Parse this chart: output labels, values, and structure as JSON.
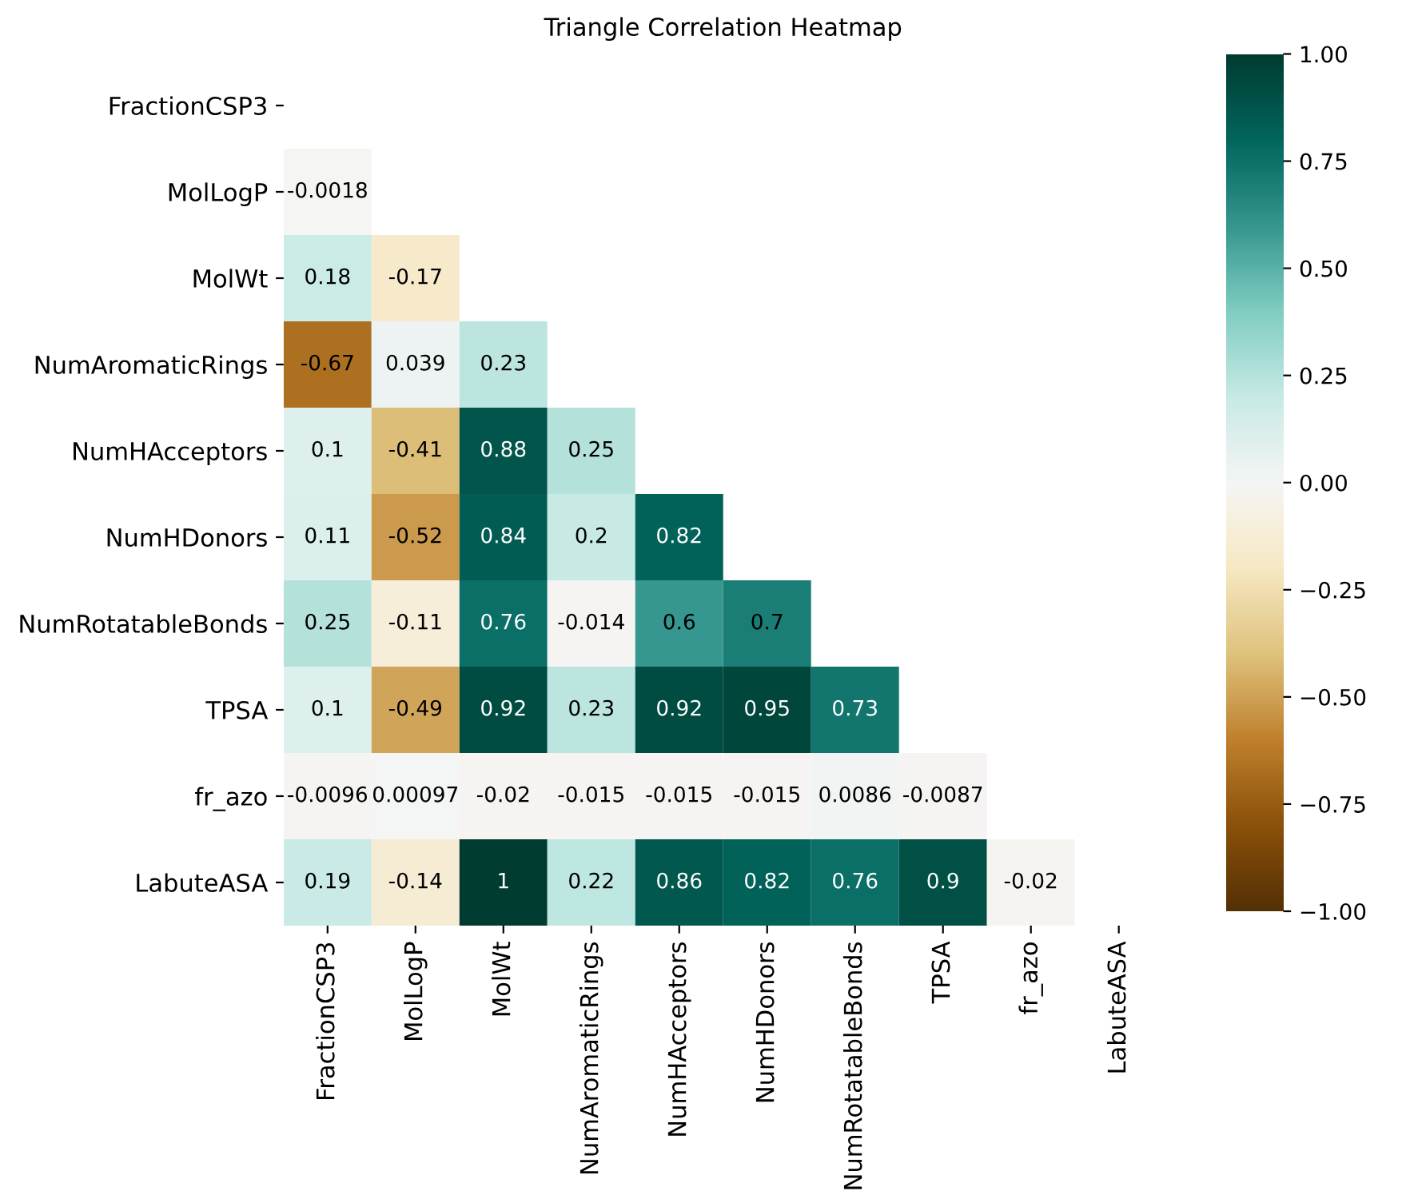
{
  "chart_data": {
    "type": "heatmap",
    "title": "Triangle Correlation Heatmap",
    "categories": [
      "FractionCSP3",
      "MolLogP",
      "MolWt",
      "NumAromaticRings",
      "NumHAcceptors",
      "NumHDonors",
      "NumRotatableBonds",
      "TPSA",
      "fr_azo",
      "LabuteASA"
    ],
    "y_categories": [
      "FractionCSP3",
      "MolLogP",
      "MolWt",
      "NumAromaticRings",
      "NumHAcceptors",
      "NumHDonors",
      "NumRotatableBonds",
      "TPSA",
      "fr_azo",
      "LabuteASA"
    ],
    "cells": [
      [
        null,
        null,
        null,
        null,
        null,
        null,
        null,
        null,
        null,
        null
      ],
      [
        -0.0018,
        null,
        null,
        null,
        null,
        null,
        null,
        null,
        null,
        null
      ],
      [
        0.18,
        -0.17,
        null,
        null,
        null,
        null,
        null,
        null,
        null,
        null
      ],
      [
        -0.67,
        0.039,
        0.23,
        null,
        null,
        null,
        null,
        null,
        null,
        null
      ],
      [
        0.1,
        -0.41,
        0.88,
        0.25,
        null,
        null,
        null,
        null,
        null,
        null
      ],
      [
        0.11,
        -0.52,
        0.84,
        0.2,
        0.82,
        null,
        null,
        null,
        null,
        null
      ],
      [
        0.25,
        -0.11,
        0.76,
        -0.014,
        0.6,
        0.7,
        null,
        null,
        null,
        null
      ],
      [
        0.1,
        -0.49,
        0.92,
        0.23,
        0.92,
        0.95,
        0.73,
        null,
        null,
        null
      ],
      [
        -0.0096,
        0.00097,
        -0.02,
        -0.015,
        -0.015,
        -0.015,
        0.0086,
        -0.0087,
        null,
        null
      ],
      [
        0.19,
        -0.14,
        1,
        0.22,
        0.86,
        0.82,
        0.76,
        0.9,
        -0.02,
        null
      ]
    ],
    "data_labels": true,
    "clim": [
      -1,
      1
    ],
    "cticks": [
      {
        "value": -1,
        "label": "−1.00"
      },
      {
        "value": -0.75,
        "label": "−0.75"
      },
      {
        "value": -0.5,
        "label": "−0.50"
      },
      {
        "value": -0.25,
        "label": "−0.25"
      },
      {
        "value": 0,
        "label": "0.00"
      },
      {
        "value": 0.25,
        "label": "0.25"
      },
      {
        "value": 0.5,
        "label": "0.50"
      },
      {
        "value": 0.75,
        "label": "0.75"
      },
      {
        "value": 1,
        "label": "1.00"
      }
    ]
  }
}
